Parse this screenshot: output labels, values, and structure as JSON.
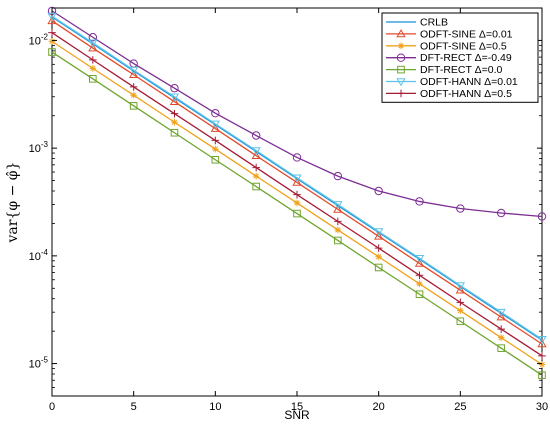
{
  "chart_data": {
    "type": "line",
    "xlabel": "SNR",
    "ylabel": "var{φ − φ̂}",
    "xlim": [
      0,
      30
    ],
    "ylim": [
      5e-06,
      0.02
    ],
    "y_scale": "log",
    "grid": false,
    "legend_position": "top-right",
    "x_ticks": [
      "0",
      "5",
      "10",
      "15",
      "20",
      "25",
      "30"
    ],
    "y_ticks": [
      {
        "value": 1e-05,
        "mantissa": "10",
        "exp": "-5"
      },
      {
        "value": 0.0001,
        "mantissa": "10",
        "exp": "-4"
      },
      {
        "value": 0.001,
        "mantissa": "10",
        "exp": "-3"
      },
      {
        "value": 0.01,
        "mantissa": "10",
        "exp": "-2"
      }
    ],
    "x": [
      0,
      2.5,
      5,
      7.5,
      10,
      12.5,
      15,
      17.5,
      20,
      22.5,
      25,
      27.5,
      30
    ],
    "series": [
      {
        "name": "CRLB",
        "color": "#1a8fd6",
        "marker": "none",
        "values": [
          0.0165,
          0.0093,
          0.0052,
          0.00293,
          0.00165,
          0.00093,
          0.00052,
          0.000293,
          0.000165,
          9.3e-05,
          5.2e-05,
          2.93e-05,
          1.65e-05
        ]
      },
      {
        "name": "ODFT-SINE Δ=0.01",
        "color": "#e34a2a",
        "marker": "triangle",
        "values": [
          0.0152,
          0.0085,
          0.0048,
          0.0027,
          0.00152,
          0.00085,
          0.00048,
          0.00027,
          0.000152,
          8.5e-05,
          4.8e-05,
          2.7e-05,
          1.52e-05
        ]
      },
      {
        "name": "ODFT-SINE Δ=0.5",
        "color": "#f0a21c",
        "marker": "star",
        "values": [
          0.0098,
          0.0055,
          0.0031,
          0.00174,
          0.00098,
          0.00055,
          0.00031,
          0.000174,
          9.8e-05,
          5.5e-05,
          3.1e-05,
          1.74e-05,
          9.8e-06
        ]
      },
      {
        "name": "DFT-RECT Δ=-0.49",
        "color": "#7d2e93",
        "marker": "circle",
        "values": [
          0.0188,
          0.0107,
          0.0061,
          0.0036,
          0.00211,
          0.00131,
          0.00082,
          0.00055,
          0.0004,
          0.00032,
          0.000275,
          0.00025,
          0.000232
        ]
      },
      {
        "name": "DFT-RECT Δ=0.0",
        "color": "#6fa52e",
        "marker": "square",
        "values": [
          0.0078,
          0.0044,
          0.00247,
          0.00139,
          0.00078,
          0.00044,
          0.000247,
          0.000139,
          7.8e-05,
          4.4e-05,
          2.47e-05,
          1.39e-05,
          7.8e-06
        ]
      },
      {
        "name": "ODFT-HANN Δ=0.01",
        "color": "#5bc3e8",
        "marker": "triangle-down",
        "values": [
          0.0168,
          0.0095,
          0.0053,
          0.003,
          0.00168,
          0.00095,
          0.00053,
          0.0003,
          0.000168,
          9.5e-05,
          5.3e-05,
          3e-05,
          1.68e-05
        ]
      },
      {
        "name": "ODFT-HANN Δ=0.5",
        "color": "#a51b36",
        "marker": "plus",
        "values": [
          0.0118,
          0.0066,
          0.0037,
          0.00209,
          0.00118,
          0.00066,
          0.00037,
          0.000209,
          0.000118,
          6.6e-05,
          3.7e-05,
          2.09e-05,
          1.18e-05
        ]
      }
    ]
  }
}
